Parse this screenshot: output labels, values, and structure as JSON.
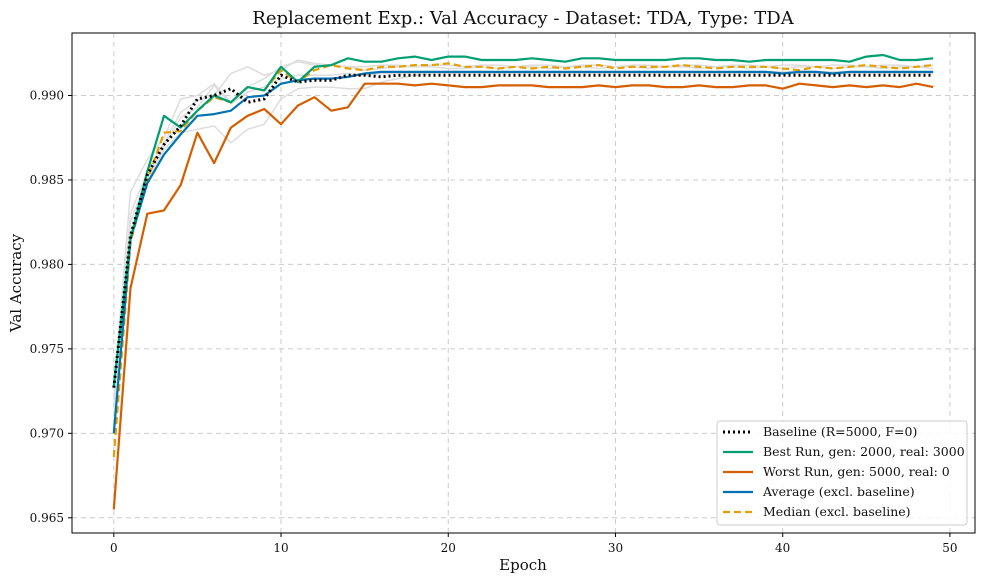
{
  "chart_data": {
    "type": "line",
    "title": "Replacement Exp.: Val Accuracy - Dataset: TDA, Type: TDA",
    "xlabel": "Epoch",
    "ylabel": "Val Accuracy",
    "xlim": [
      -2.5,
      51.5
    ],
    "ylim": [
      0.9641,
      0.9937
    ],
    "xticks": [
      0,
      10,
      20,
      30,
      40,
      50
    ],
    "yticks": [
      0.965,
      0.97,
      0.975,
      0.98,
      0.985,
      0.99
    ],
    "ytick_labels": [
      "0.965",
      "0.970",
      "0.975",
      "0.980",
      "0.985",
      "0.990"
    ],
    "grid": true,
    "legend_position": "bottom-right",
    "x": [
      0,
      1,
      2,
      3,
      4,
      5,
      6,
      7,
      8,
      9,
      10,
      11,
      12,
      13,
      14,
      15,
      16,
      17,
      18,
      19,
      20,
      21,
      22,
      23,
      24,
      25,
      26,
      27,
      28,
      29,
      30,
      31,
      32,
      33,
      34,
      35,
      36,
      37,
      38,
      39,
      40,
      41,
      42,
      43,
      44,
      45,
      46,
      47,
      48,
      49
    ],
    "series": [
      {
        "name": "Baseline (R=5000, F=0)",
        "color": "#000000",
        "style": "dotted",
        "width": 3,
        "values": [
          0.9727,
          0.9817,
          0.9853,
          0.9871,
          0.9882,
          0.9898,
          0.99,
          0.9904,
          0.9896,
          0.9898,
          0.9912,
          0.9908,
          0.9909,
          0.9909,
          0.9912,
          0.9912,
          0.9911,
          0.9912,
          0.9912,
          0.9912,
          0.9912,
          0.9912,
          0.9912,
          0.9912,
          0.9912,
          0.9912,
          0.9912,
          0.9912,
          0.9912,
          0.9912,
          0.9912,
          0.9912,
          0.9912,
          0.9912,
          0.9912,
          0.9912,
          0.9912,
          0.9912,
          0.9912,
          0.9912,
          0.9912,
          0.9912,
          0.9912,
          0.9912,
          0.9912,
          0.9912,
          0.9912,
          0.9912,
          0.9912,
          0.9912
        ]
      },
      {
        "name": "Best Run, gen: 2000, real: 3000",
        "color": "#009e73",
        "style": "solid",
        "width": 2.2,
        "values": [
          0.9728,
          0.9815,
          0.9855,
          0.9888,
          0.9881,
          0.9891,
          0.99,
          0.9896,
          0.9905,
          0.9903,
          0.9917,
          0.9908,
          0.9917,
          0.9918,
          0.9922,
          0.992,
          0.992,
          0.9922,
          0.9923,
          0.9921,
          0.9923,
          0.9923,
          0.9921,
          0.9921,
          0.9921,
          0.9922,
          0.9921,
          0.992,
          0.9922,
          0.9922,
          0.9921,
          0.9921,
          0.9921,
          0.9921,
          0.9922,
          0.9922,
          0.9921,
          0.9921,
          0.992,
          0.9921,
          0.9921,
          0.9921,
          0.9921,
          0.9921,
          0.992,
          0.9923,
          0.9924,
          0.9921,
          0.9921,
          0.9922
        ]
      },
      {
        "name": "Worst Run, gen: 5000, real: 0",
        "color": "#d55e00",
        "style": "solid",
        "width": 2.2,
        "values": [
          0.9655,
          0.9786,
          0.983,
          0.9832,
          0.9847,
          0.9878,
          0.986,
          0.9881,
          0.9888,
          0.9892,
          0.9883,
          0.9894,
          0.9899,
          0.9891,
          0.9893,
          0.9907,
          0.9907,
          0.9907,
          0.9906,
          0.9907,
          0.9906,
          0.9905,
          0.9905,
          0.9906,
          0.9906,
          0.9906,
          0.9905,
          0.9905,
          0.9905,
          0.9906,
          0.9905,
          0.9906,
          0.9906,
          0.9905,
          0.9905,
          0.9906,
          0.9905,
          0.9905,
          0.9906,
          0.9906,
          0.9904,
          0.9907,
          0.9906,
          0.9905,
          0.9906,
          0.9905,
          0.9906,
          0.9905,
          0.9907,
          0.9905
        ]
      },
      {
        "name": "Average (excl. baseline)",
        "color": "#0072b2",
        "style": "solid",
        "width": 2.2,
        "values": [
          0.97,
          0.9815,
          0.9848,
          0.9865,
          0.9877,
          0.9888,
          0.9889,
          0.9891,
          0.9899,
          0.99,
          0.9907,
          0.9909,
          0.991,
          0.991,
          0.9911,
          0.9913,
          0.9914,
          0.9914,
          0.9914,
          0.9914,
          0.9914,
          0.9914,
          0.9914,
          0.9914,
          0.9914,
          0.9914,
          0.9914,
          0.9914,
          0.9914,
          0.9914,
          0.9914,
          0.9914,
          0.9914,
          0.9914,
          0.9914,
          0.9914,
          0.9914,
          0.9914,
          0.9914,
          0.9914,
          0.9913,
          0.9914,
          0.9914,
          0.9913,
          0.9914,
          0.9914,
          0.9914,
          0.9914,
          0.9914,
          0.9914
        ]
      },
      {
        "name": "Median (excl. baseline)",
        "color": "#e69f00",
        "style": "dashed",
        "width": 2.2,
        "values": [
          0.9686,
          0.9813,
          0.985,
          0.9878,
          0.9879,
          0.9891,
          0.9899,
          0.9896,
          0.9905,
          0.9903,
          0.9915,
          0.9908,
          0.9915,
          0.9918,
          0.9916,
          0.9915,
          0.9917,
          0.9917,
          0.9918,
          0.9918,
          0.9919,
          0.9917,
          0.9917,
          0.9916,
          0.9917,
          0.9916,
          0.9917,
          0.9916,
          0.9917,
          0.9918,
          0.9916,
          0.9917,
          0.9917,
          0.9917,
          0.9918,
          0.9917,
          0.9916,
          0.9917,
          0.9917,
          0.9917,
          0.9916,
          0.9915,
          0.9917,
          0.9916,
          0.9917,
          0.9918,
          0.9917,
          0.9916,
          0.9917,
          0.9918
        ]
      }
    ],
    "background_series": [
      {
        "color": "#dddddd",
        "values": [
          0.9725,
          0.9843,
          0.9862,
          0.9875,
          0.9898,
          0.99,
          0.9907,
          0.9896,
          0.9905,
          0.991,
          0.9917,
          0.992,
          0.9918,
          0.9918,
          0.9917,
          0.9915,
          0.9916,
          0.9917,
          0.9917,
          0.9917,
          0.9916,
          0.9916,
          0.9917,
          0.9916,
          0.9917,
          0.9917,
          0.9916,
          0.9917,
          0.9917,
          0.9916,
          0.9917,
          0.9917,
          0.9916,
          0.9917,
          0.9917,
          0.9916,
          0.9917,
          0.9917,
          0.9916,
          0.9917,
          0.9916,
          0.9917,
          0.9917,
          0.9916,
          0.9917,
          0.9917,
          0.9916,
          0.9917,
          0.9917,
          0.9916
        ]
      },
      {
        "color": "#dddddd",
        "values": [
          0.972,
          0.983,
          0.9855,
          0.9872,
          0.989,
          0.9897,
          0.99,
          0.9913,
          0.9917,
          0.9912,
          0.9915,
          0.9921,
          0.9919,
          0.9918,
          0.9917,
          0.9917,
          0.9918,
          0.9918,
          0.9917,
          0.9918,
          0.9918,
          0.9917,
          0.9918,
          0.9918,
          0.9917,
          0.9918,
          0.9918,
          0.9917,
          0.9918,
          0.9918,
          0.9917,
          0.9918,
          0.9918,
          0.9917,
          0.9918,
          0.9918,
          0.9917,
          0.9918,
          0.9918,
          0.9917,
          0.9918,
          0.9918,
          0.9917,
          0.9918,
          0.9918,
          0.9917,
          0.9918,
          0.9918,
          0.9917,
          0.9918
        ]
      },
      {
        "color": "#dddddd",
        "values": [
          0.9715,
          0.9818,
          0.985,
          0.9868,
          0.9878,
          0.988,
          0.9882,
          0.9872,
          0.988,
          0.9883,
          0.9898,
          0.9904,
          0.9905,
          0.9905,
          0.9904,
          0.9904,
          0.9908,
          0.991,
          0.9912,
          0.9913,
          0.9914,
          0.9914,
          0.9914,
          0.9914,
          0.9914,
          0.9914,
          0.9914,
          0.9914,
          0.9914,
          0.9914,
          0.9914,
          0.9914,
          0.9914,
          0.9914,
          0.9914,
          0.9914,
          0.9914,
          0.9914,
          0.9914,
          0.9914,
          0.9914,
          0.9914,
          0.9914,
          0.9914,
          0.9914,
          0.9914,
          0.9914,
          0.9914,
          0.9914,
          0.9914
        ]
      },
      {
        "color": "#dddddd",
        "values": [
          0.971,
          0.9825,
          0.9852,
          0.987,
          0.9887,
          0.9893,
          0.9906,
          0.9895,
          0.9902,
          0.9905,
          0.991,
          0.9912,
          0.9912,
          0.9912,
          0.9913,
          0.9912,
          0.9913,
          0.9913,
          0.9913,
          0.9913,
          0.9913,
          0.9913,
          0.9913,
          0.9913,
          0.9913,
          0.9913,
          0.9913,
          0.9913,
          0.9913,
          0.9913,
          0.9913,
          0.9913,
          0.9913,
          0.9913,
          0.9913,
          0.9913,
          0.9913,
          0.9913,
          0.9913,
          0.9913,
          0.9913,
          0.9913,
          0.9913,
          0.9913,
          0.9913,
          0.9913,
          0.9913,
          0.9913,
          0.9913,
          0.9913
        ]
      }
    ]
  }
}
